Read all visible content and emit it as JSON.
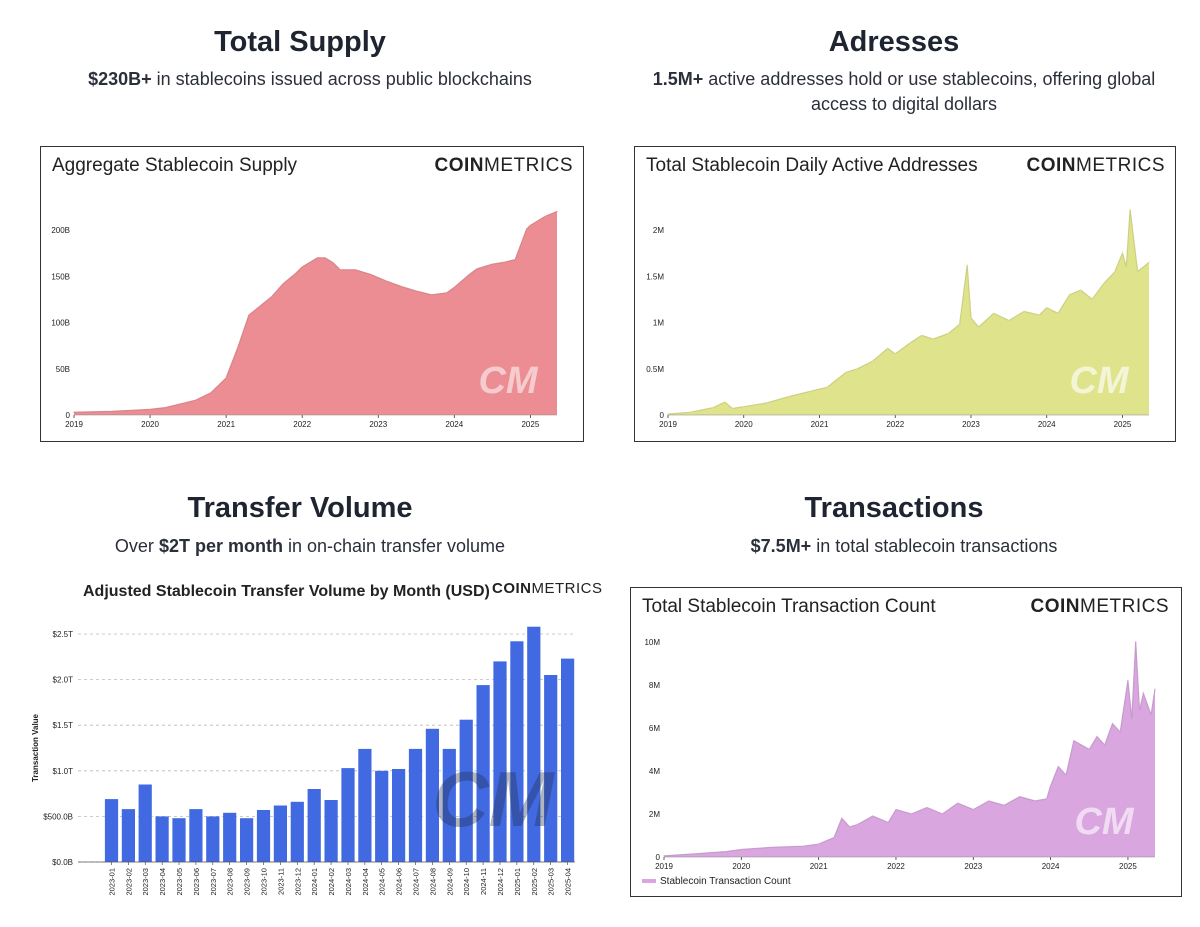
{
  "panels": {
    "supply": {
      "heading": "Total Supply",
      "sub_bold": "$230B+",
      "sub_rest": " in stablecoins issued across public blockchains",
      "chart_title": "Aggregate Stablecoin Supply"
    },
    "addresses": {
      "heading": "Adresses",
      "sub_bold": "1.5M+",
      "sub_rest": " active addresses hold or use stablecoins, offering global access to digital dollars",
      "chart_title": "Total Stablecoin Daily Active Addresses"
    },
    "volume": {
      "heading": "Transfer Volume",
      "sub_pre": "Over ",
      "sub_bold": "$2T per month",
      "sub_rest": " in on-chain transfer volume",
      "chart_title": "Adjusted Stablecoin Transfer Volume by Month (USD)"
    },
    "transactions": {
      "heading": "Transactions",
      "sub_bold": "$7.5M+",
      "sub_rest": " in total stablecoin transactions",
      "chart_title": "Total Stablecoin Transaction Count",
      "legend_label": "Stablecoin Transaction Count"
    }
  },
  "brand": {
    "bold": "COIN",
    "light": "METRICS",
    "watermark": "CM"
  },
  "colors": {
    "supply": "#ec8d93",
    "addresses": "#dfe38b",
    "volume": "#4169e1",
    "transactions": "#d9a6e0"
  },
  "chart_data": [
    {
      "type": "area",
      "title": "Aggregate Stablecoin Supply",
      "xlabel": "",
      "ylabel": "",
      "x_ticks": [
        "2019",
        "2020",
        "2021",
        "2022",
        "2023",
        "2024",
        "2025"
      ],
      "y_ticks": [
        "0",
        "50B",
        "100B",
        "150B",
        "200B"
      ],
      "ylim": [
        0,
        240
      ],
      "xlim": [
        2019.0,
        2025.35
      ],
      "x": [
        2019.0,
        2019.5,
        2020.0,
        2020.2,
        2020.4,
        2020.6,
        2020.8,
        2021.0,
        2021.15,
        2021.3,
        2021.45,
        2021.6,
        2021.75,
        2021.9,
        2022.0,
        2022.2,
        2022.3,
        2022.4,
        2022.5,
        2022.7,
        2022.9,
        2023.1,
        2023.3,
        2023.5,
        2023.7,
        2023.9,
        2024.0,
        2024.2,
        2024.3,
        2024.5,
        2024.65,
        2024.8,
        2024.9,
        2024.95,
        2025.0,
        2025.1,
        2025.2,
        2025.35
      ],
      "values": [
        3,
        4,
        6,
        8,
        12,
        16,
        24,
        40,
        72,
        108,
        118,
        128,
        142,
        152,
        160,
        170,
        170,
        165,
        157,
        157,
        152,
        145,
        139,
        134,
        130,
        132,
        138,
        152,
        158,
        163,
        165,
        168,
        190,
        201,
        205,
        210,
        215,
        220
      ],
      "grid": false,
      "legend": "none"
    },
    {
      "type": "area",
      "title": "Total Stablecoin Daily Active Addresses",
      "xlabel": "",
      "ylabel": "",
      "x_ticks": [
        "2019",
        "2020",
        "2021",
        "2022",
        "2023",
        "2024",
        "2025"
      ],
      "y_ticks": [
        "0",
        "0.5M",
        "1M",
        "1.5M",
        "2M"
      ],
      "ylim": [
        0,
        2.4
      ],
      "xlim": [
        2019.0,
        2025.35
      ],
      "x": [
        2019.0,
        2019.3,
        2019.6,
        2019.75,
        2019.85,
        2020.0,
        2020.3,
        2020.6,
        2020.9,
        2021.1,
        2021.35,
        2021.5,
        2021.7,
        2021.9,
        2022.0,
        2022.2,
        2022.35,
        2022.5,
        2022.7,
        2022.85,
        2022.95,
        2023.0,
        2023.1,
        2023.3,
        2023.5,
        2023.7,
        2023.9,
        2024.0,
        2024.15,
        2024.3,
        2024.45,
        2024.6,
        2024.75,
        2024.9,
        2025.0,
        2025.05,
        2025.1,
        2025.2,
        2025.35
      ],
      "values": [
        0.01,
        0.03,
        0.08,
        0.14,
        0.07,
        0.09,
        0.13,
        0.2,
        0.26,
        0.3,
        0.46,
        0.5,
        0.58,
        0.72,
        0.66,
        0.78,
        0.86,
        0.82,
        0.88,
        0.98,
        1.62,
        1.05,
        0.95,
        1.1,
        1.02,
        1.12,
        1.08,
        1.16,
        1.1,
        1.3,
        1.35,
        1.25,
        1.42,
        1.55,
        1.75,
        1.6,
        2.22,
        1.55,
        1.65
      ],
      "grid": false,
      "legend": "none"
    },
    {
      "type": "bar",
      "title": "Adjusted Stablecoin Transfer Volume by Month (USD)",
      "xlabel": "",
      "ylabel": "Transaction Value",
      "y_ticks": [
        "$0.0B",
        "$500.0B",
        "$1.0T",
        "$1.5T",
        "$2.0T",
        "$2.5T"
      ],
      "ylim": [
        0,
        2.6
      ],
      "grid": true,
      "legend": "none",
      "categories": [
        "2023-01",
        "2023-02",
        "2023-03",
        "2023-04",
        "2023-05",
        "2023-06",
        "2023-07",
        "2023-08",
        "2023-09",
        "2023-10",
        "2023-11",
        "2023-12",
        "2024-01",
        "2024-02",
        "2024-03",
        "2024-04",
        "2024-05",
        "2024-06",
        "2024-07",
        "2024-08",
        "2024-09",
        "2024-10",
        "2024-11",
        "2024-12",
        "2025-01",
        "2025-02",
        "2025-03",
        "2025-04"
      ],
      "values": [
        0.69,
        0.58,
        0.85,
        0.5,
        0.48,
        0.58,
        0.5,
        0.54,
        0.48,
        0.57,
        0.62,
        0.66,
        0.8,
        0.68,
        1.03,
        1.24,
        1.0,
        1.02,
        1.24,
        1.46,
        1.24,
        1.56,
        1.94,
        2.2,
        2.42,
        2.58,
        2.05,
        2.23
      ]
    },
    {
      "type": "area",
      "title": "Total Stablecoin Transaction Count",
      "xlabel": "",
      "ylabel": "",
      "x_ticks": [
        "2019",
        "2020",
        "2021",
        "2022",
        "2023",
        "2024",
        "2025"
      ],
      "y_ticks": [
        "0",
        "2M",
        "4M",
        "6M",
        "8M",
        "10M"
      ],
      "ylim": [
        0,
        10.5
      ],
      "xlim": [
        2019.0,
        2025.35
      ],
      "x": [
        2019.0,
        2019.4,
        2019.8,
        2020.0,
        2020.4,
        2020.8,
        2021.0,
        2021.2,
        2021.3,
        2021.4,
        2021.5,
        2021.7,
        2021.9,
        2022.0,
        2022.2,
        2022.4,
        2022.6,
        2022.8,
        2023.0,
        2023.2,
        2023.4,
        2023.6,
        2023.8,
        2023.95,
        2024.0,
        2024.1,
        2024.2,
        2024.3,
        2024.5,
        2024.6,
        2024.7,
        2024.8,
        2024.9,
        2025.0,
        2025.05,
        2025.1,
        2025.15,
        2025.2,
        2025.3,
        2025.35
      ],
      "values": [
        0.05,
        0.15,
        0.25,
        0.35,
        0.45,
        0.5,
        0.6,
        0.9,
        1.8,
        1.4,
        1.5,
        1.9,
        1.6,
        2.2,
        2.0,
        2.3,
        2.0,
        2.5,
        2.2,
        2.6,
        2.4,
        2.8,
        2.6,
        2.7,
        3.3,
        4.2,
        3.8,
        5.4,
        5.0,
        5.6,
        5.2,
        6.2,
        5.8,
        8.2,
        6.4,
        10.0,
        6.8,
        7.6,
        6.6,
        7.8
      ],
      "grid": false,
      "legend": "bottom-left"
    }
  ]
}
